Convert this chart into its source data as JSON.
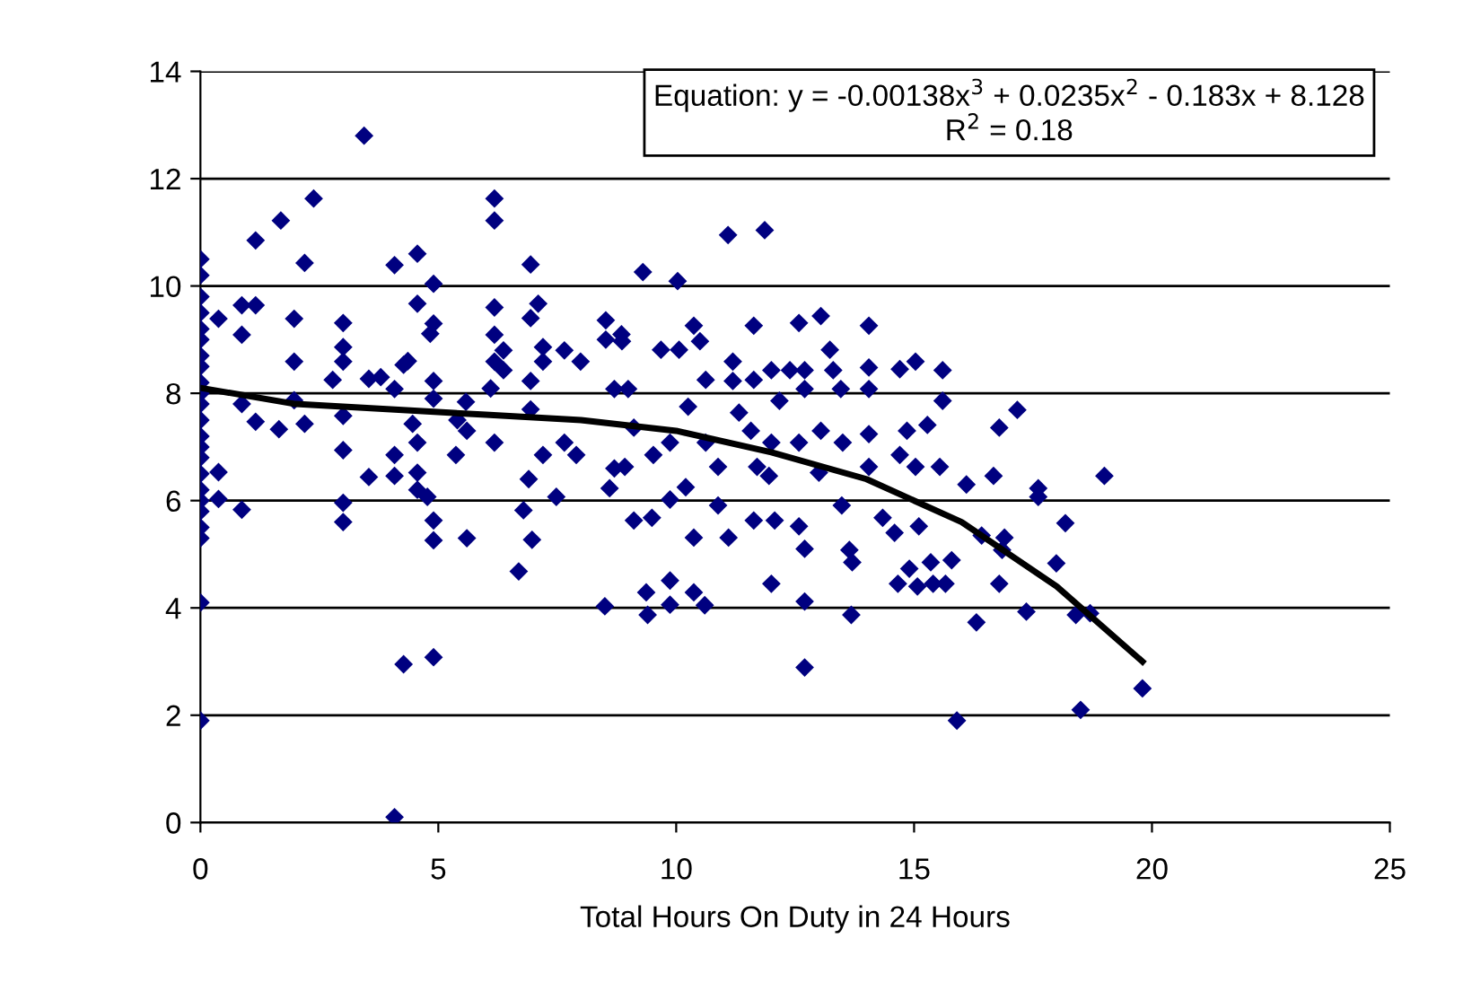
{
  "chart_data": {
    "type": "scatter",
    "xlabel": "Total Hours On Duty in 24 Hours",
    "xlim": [
      0,
      25
    ],
    "xticks": [
      0,
      5,
      10,
      15,
      20,
      25
    ],
    "ylim": [
      0,
      14
    ],
    "yticks": [
      0,
      2,
      4,
      6,
      8,
      10,
      12,
      14
    ],
    "grid": "y",
    "legend": false,
    "marker": "diamond",
    "annotations": [
      "Equation: y = -0.00138x$^{3}$ + 0.0235x$^{2}$ - 0.183x + 8.128",
      "R$^{2}$ = 0.18"
    ],
    "series": [
      {
        "color": "#000080",
        "x": [
          0,
          0,
          0,
          0,
          0,
          0,
          0,
          0,
          0,
          0,
          0,
          0,
          0,
          0,
          0,
          0,
          0,
          0,
          0,
          0,
          0,
          0,
          0,
          0.38,
          0.38,
          0.38,
          0.87,
          0.87,
          0.87,
          0.87,
          1.16,
          1.16,
          1.16,
          1.69,
          1.65,
          1.97,
          1.97,
          1.97,
          2.19,
          2.19,
          2.38,
          2.78,
          3.0,
          3.0,
          3.0,
          3.0,
          3.0,
          3.0,
          3.0,
          3.44,
          3.54,
          3.54,
          3.79,
          4.08,
          4.08,
          4.08,
          4.08,
          4.27,
          4.36,
          4.27,
          4.08,
          4.56,
          4.56,
          4.46,
          4.56,
          4.56,
          4.56,
          4.77,
          4.83,
          4.9,
          4.9,
          4.9,
          4.9,
          4.9,
          4.9,
          4.9,
          5.37,
          5.4,
          5.58,
          5.6,
          5.6,
          6.18,
          6.18,
          6.18,
          6.18,
          6.18,
          6.1,
          6.18,
          6.37,
          6.37,
          6.69,
          6.79,
          6.9,
          6.94,
          6.94,
          6.94,
          6.94,
          6.97,
          7.1,
          7.2,
          7.2,
          7.2,
          7.48,
          7.65,
          7.65,
          7.9,
          7.99,
          8.5,
          8.52,
          8.52,
          8.6,
          8.7,
          8.7,
          8.85,
          9.3,
          10.03,
          11.09,
          11.86,
          8.86,
          8.99,
          9.11,
          8.92,
          9.11,
          9.49,
          9.37,
          9.4,
          9.87,
          9.87,
          10.37,
          10.6,
          9.68,
          10.06,
          10.37,
          10.5,
          10.25,
          9.87,
          9.52,
          9.87,
          10.2,
          10.37,
          10.88,
          11.1,
          10.62,
          10.62,
          10.88,
          11.19,
          11.19,
          11.63,
          11.63,
          11.32,
          11.57,
          11.7,
          11.63,
          12.07,
          12.0,
          12.0,
          12.17,
          12.0,
          11.95,
          12.39,
          12.58,
          12.7,
          12.7,
          12.58,
          12.58,
          12.7,
          12.7,
          12.7,
          13.04,
          13.23,
          13.04,
          13.0,
          13.3,
          13.46,
          13.5,
          13.48,
          13.64,
          13.7,
          13.68,
          14.05,
          14.05,
          14.05,
          14.05,
          14.05,
          14.34,
          14.59,
          14.66,
          14.7,
          14.9,
          15.1,
          15.07,
          15.03,
          14.7,
          14.85,
          15.03,
          15.28,
          15.35,
          15.4,
          15.6,
          15.6,
          15.54,
          15.66,
          15.79,
          15.9,
          16.1,
          16.42,
          16.31,
          16.67,
          16.79,
          17.17,
          16.85,
          16.79,
          16.9,
          17.36,
          17.61,
          17.61,
          17.99,
          18.18,
          18.4,
          19.0,
          18.7,
          18.5,
          19.8
        ],
        "values": [
          10.5,
          10.2,
          9.8,
          9.5,
          9.2,
          9.0,
          8.7,
          8.5,
          8.2,
          8.0,
          7.8,
          7.5,
          7.2,
          7.0,
          6.8,
          6.5,
          6.2,
          6.0,
          5.8,
          5.5,
          5.3,
          4.1,
          1.9,
          9.39,
          6.53,
          6.03,
          9.64,
          9.09,
          7.8,
          5.83,
          10.85,
          9.64,
          7.47,
          11.22,
          7.33,
          9.39,
          8.59,
          7.87,
          10.43,
          7.43,
          11.63,
          8.25,
          9.31,
          8.86,
          8.59,
          7.58,
          6.94,
          5.96,
          5.6,
          12.8,
          8.27,
          6.44,
          8.3,
          10.39,
          8.08,
          6.85,
          6.46,
          8.53,
          8.6,
          2.95,
          0.1,
          10.6,
          9.67,
          7.43,
          7.08,
          6.52,
          6.2,
          6.07,
          9.11,
          9.3,
          10.04,
          8.23,
          7.9,
          5.63,
          5.26,
          3.08,
          6.85,
          7.5,
          7.84,
          5.3,
          7.3,
          11.63,
          11.22,
          9.6,
          9.09,
          8.59,
          8.09,
          7.08,
          8.8,
          8.43,
          4.68,
          5.82,
          6.4,
          10.4,
          9.4,
          8.23,
          7.7,
          5.27,
          9.67,
          6.85,
          8.86,
          8.59,
          6.07,
          8.8,
          7.08,
          6.85,
          8.59,
          4.03,
          9.36,
          9.0,
          6.23,
          8.08,
          6.6,
          9.1,
          10.26,
          10.09,
          10.95,
          11.04,
          8.97,
          8.08,
          7.36,
          6.63,
          5.63,
          5.68,
          4.29,
          3.87,
          4.51,
          4.06,
          4.29,
          4.05,
          8.81,
          8.81,
          9.26,
          8.97,
          7.75,
          7.08,
          6.85,
          6.02,
          6.25,
          5.31,
          5.91,
          5.31,
          8.25,
          7.08,
          6.63,
          8.59,
          8.23,
          9.26,
          8.25,
          7.64,
          7.3,
          6.63,
          5.63,
          5.63,
          4.45,
          8.43,
          7.86,
          7.08,
          6.46,
          8.43,
          9.31,
          8.43,
          8.08,
          7.08,
          5.52,
          5.1,
          4.12,
          2.89,
          9.44,
          8.81,
          7.3,
          6.52,
          8.43,
          8.08,
          7.08,
          5.91,
          5.08,
          4.85,
          3.87,
          9.26,
          8.48,
          8.08,
          7.24,
          6.63,
          5.68,
          5.4,
          4.45,
          6.85,
          4.73,
          5.52,
          4.4,
          8.59,
          8.45,
          7.3,
          6.63,
          7.41,
          4.85,
          4.45,
          8.43,
          7.86,
          6.63,
          4.45,
          4.89,
          1.9,
          6.3,
          5.35,
          3.73,
          6.46,
          7.36,
          7.69,
          5.08,
          4.45,
          5.31,
          3.93,
          6.23,
          6.07,
          4.83,
          5.58,
          3.87,
          6.46,
          3.9,
          2.1,
          2.5
        ]
      },
      {
        "type": "line",
        "color": "#000000",
        "marker": "none",
        "x": [
          0,
          2,
          4,
          6,
          8,
          10,
          12,
          14,
          16,
          18,
          19.8
        ],
        "values": [
          8.1,
          7.8,
          7.7,
          7.6,
          7.5,
          7.3,
          6.9,
          6.4,
          5.6,
          4.4,
          3.0
        ]
      }
    ]
  }
}
